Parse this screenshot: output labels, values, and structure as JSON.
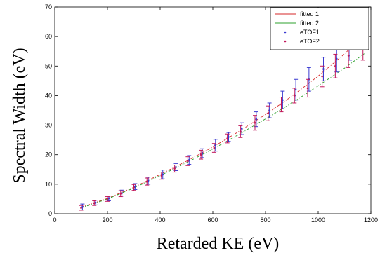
{
  "chart_data": {
    "type": "scatter",
    "xlabel": "Retarded KE (eV)",
    "ylabel": "Spectral Width (eV)",
    "xlim": [
      0,
      1200
    ],
    "ylim": [
      0,
      70
    ],
    "xticks": [
      0,
      200,
      400,
      600,
      800,
      1000,
      1200
    ],
    "yticks": [
      0,
      10,
      20,
      30,
      40,
      50,
      60,
      70
    ],
    "grid": false,
    "legend_position": "top-right",
    "legend": [
      "fitted 1",
      "fitted 2",
      "eTOF1",
      "eTOF2"
    ],
    "fits": [
      {
        "name": "fitted 1",
        "color": "#d62728",
        "x": [
          100,
          200,
          300,
          400,
          500,
          600,
          700,
          800,
          900,
          1000,
          1100,
          1175
        ],
        "y": [
          2.2,
          5.2,
          9.0,
          13.3,
          17.8,
          22.6,
          27.9,
          33.6,
          39.8,
          46.6,
          54.1,
          60.8
        ]
      },
      {
        "name": "fitted 2",
        "color": "#2ca02c",
        "x": [
          100,
          200,
          300,
          400,
          500,
          600,
          700,
          800,
          900,
          1000,
          1100,
          1175
        ],
        "y": [
          2.0,
          5.0,
          8.7,
          12.9,
          17.3,
          21.9,
          26.9,
          32.1,
          37.5,
          43.3,
          49.3,
          54.2
        ]
      }
    ],
    "series": [
      {
        "name": "eTOF1",
        "color": "#3a3ad0",
        "points": [
          {
            "x": 105,
            "y": 2.3,
            "err": 1.0
          },
          {
            "x": 155,
            "y": 3.8,
            "err": 0.8
          },
          {
            "x": 205,
            "y": 5.2,
            "err": 0.8
          },
          {
            "x": 255,
            "y": 7.0,
            "err": 1.0
          },
          {
            "x": 305,
            "y": 9.2,
            "err": 1.0
          },
          {
            "x": 355,
            "y": 11.2,
            "err": 1.2
          },
          {
            "x": 410,
            "y": 13.3,
            "err": 1.5
          },
          {
            "x": 460,
            "y": 15.8,
            "err": 1.2
          },
          {
            "x": 510,
            "y": 18.2,
            "err": 1.5
          },
          {
            "x": 560,
            "y": 20.5,
            "err": 1.5
          },
          {
            "x": 610,
            "y": 23.2,
            "err": 2.0
          },
          {
            "x": 660,
            "y": 26.0,
            "err": 1.5
          },
          {
            "x": 710,
            "y": 28.8,
            "err": 2.0
          },
          {
            "x": 765,
            "y": 32.0,
            "err": 2.5
          },
          {
            "x": 815,
            "y": 35.0,
            "err": 2.5
          },
          {
            "x": 865,
            "y": 38.5,
            "err": 3.0
          },
          {
            "x": 915,
            "y": 42.0,
            "err": 3.5
          },
          {
            "x": 965,
            "y": 45.5,
            "err": 4.0
          },
          {
            "x": 1020,
            "y": 49.0,
            "err": 4.0
          },
          {
            "x": 1070,
            "y": 52.5,
            "err": 4.5
          },
          {
            "x": 1120,
            "y": 57.0,
            "err": 5.0
          },
          {
            "x": 1170,
            "y": 61.0,
            "err": 5.0
          }
        ]
      },
      {
        "name": "eTOF2",
        "color": "#c2185b",
        "points": [
          {
            "x": 100,
            "y": 2.0,
            "err": 0.8
          },
          {
            "x": 150,
            "y": 3.6,
            "err": 0.8
          },
          {
            "x": 200,
            "y": 5.0,
            "err": 0.8
          },
          {
            "x": 250,
            "y": 6.8,
            "err": 1.0
          },
          {
            "x": 300,
            "y": 8.9,
            "err": 1.0
          },
          {
            "x": 350,
            "y": 10.9,
            "err": 1.2
          },
          {
            "x": 405,
            "y": 12.9,
            "err": 1.2
          },
          {
            "x": 455,
            "y": 15.3,
            "err": 1.2
          },
          {
            "x": 505,
            "y": 17.8,
            "err": 1.5
          },
          {
            "x": 555,
            "y": 20.0,
            "err": 1.5
          },
          {
            "x": 605,
            "y": 22.3,
            "err": 1.5
          },
          {
            "x": 655,
            "y": 25.5,
            "err": 1.5
          },
          {
            "x": 705,
            "y": 27.8,
            "err": 2.0
          },
          {
            "x": 760,
            "y": 30.8,
            "err": 2.5
          },
          {
            "x": 810,
            "y": 34.0,
            "err": 2.5
          },
          {
            "x": 860,
            "y": 37.0,
            "err": 2.5
          },
          {
            "x": 910,
            "y": 40.0,
            "err": 2.5
          },
          {
            "x": 960,
            "y": 42.5,
            "err": 3.0
          },
          {
            "x": 1015,
            "y": 46.5,
            "err": 3.5
          },
          {
            "x": 1065,
            "y": 50.0,
            "err": 4.0
          },
          {
            "x": 1115,
            "y": 53.5,
            "err": 4.0
          },
          {
            "x": 1170,
            "y": 57.0,
            "err": 5.0
          }
        ]
      }
    ]
  }
}
